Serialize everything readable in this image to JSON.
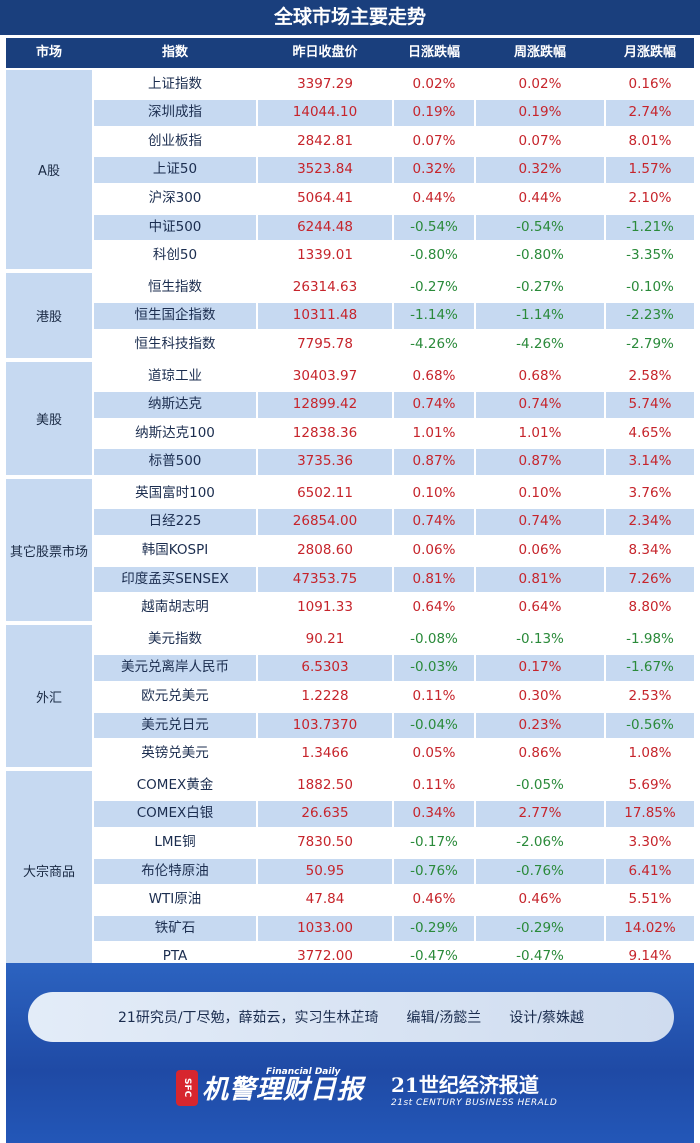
{
  "title": "全球市场主要走势",
  "headers": [
    "市场",
    "指数",
    "昨日收盘价",
    "日涨跌幅",
    "周涨跌幅",
    "月涨跌幅"
  ],
  "colors": {
    "header_bg": "#1a3f7d",
    "row_blue": "#c6d9f1",
    "row_white": "#ffffff",
    "up": "#c6242b",
    "down": "#2a8a3a"
  },
  "groups": [
    {
      "market": "A股",
      "rows": [
        {
          "name": "上证指数",
          "close": "3397.29",
          "day": "0.02%",
          "week": "0.02%",
          "month": "0.16%"
        },
        {
          "name": "深圳成指",
          "close": "14044.10",
          "day": "0.19%",
          "week": "0.19%",
          "month": "2.74%"
        },
        {
          "name": "创业板指",
          "close": "2842.81",
          "day": "0.07%",
          "week": "0.07%",
          "month": "8.01%"
        },
        {
          "name": "上证50",
          "close": "3523.84",
          "day": "0.32%",
          "week": "0.32%",
          "month": "1.57%"
        },
        {
          "name": "沪深300",
          "close": "5064.41",
          "day": "0.44%",
          "week": "0.44%",
          "month": "2.10%"
        },
        {
          "name": "中证500",
          "close": "6244.48",
          "day": "-0.54%",
          "week": "-0.54%",
          "month": "-1.21%"
        },
        {
          "name": "科创50",
          "close": "1339.01",
          "day": "-0.80%",
          "week": "-0.80%",
          "month": "-3.35%"
        }
      ]
    },
    {
      "market": "港股",
      "rows": [
        {
          "name": "恒生指数",
          "close": "26314.63",
          "day": "-0.27%",
          "week": "-0.27%",
          "month": "-0.10%"
        },
        {
          "name": "恒生国企指数",
          "close": "10311.48",
          "day": "-1.14%",
          "week": "-1.14%",
          "month": "-2.23%"
        },
        {
          "name": "恒生科技指数",
          "close": "7795.78",
          "day": "-4.26%",
          "week": "-4.26%",
          "month": "-2.79%"
        }
      ]
    },
    {
      "market": "美股",
      "rows": [
        {
          "name": "道琼工业",
          "close": "30403.97",
          "day": "0.68%",
          "week": "0.68%",
          "month": "2.58%"
        },
        {
          "name": "纳斯达克",
          "close": "12899.42",
          "day": "0.74%",
          "week": "0.74%",
          "month": "5.74%"
        },
        {
          "name": "纳斯达克100",
          "close": "12838.36",
          "day": "1.01%",
          "week": "1.01%",
          "month": "4.65%"
        },
        {
          "name": "标普500",
          "close": "3735.36",
          "day": "0.87%",
          "week": "0.87%",
          "month": "3.14%"
        }
      ]
    },
    {
      "market": "其它股票市场",
      "rows": [
        {
          "name": "英国富时100",
          "close": "6502.11",
          "day": "0.10%",
          "week": "0.10%",
          "month": "3.76%"
        },
        {
          "name": "日经225",
          "close": "26854.00",
          "day": "0.74%",
          "week": "0.74%",
          "month": "2.34%"
        },
        {
          "name": "韩国KOSPI",
          "close": "2808.60",
          "day": "0.06%",
          "week": "0.06%",
          "month": "8.34%"
        },
        {
          "name": "印度孟买SENSEX",
          "close": "47353.75",
          "day": "0.81%",
          "week": "0.81%",
          "month": "7.26%"
        },
        {
          "name": "越南胡志明",
          "close": "1091.33",
          "day": "0.64%",
          "week": "0.64%",
          "month": "8.80%"
        }
      ]
    },
    {
      "market": "外汇",
      "rows": [
        {
          "name": "美元指数",
          "close": "90.21",
          "day": "-0.08%",
          "week": "-0.13%",
          "month": "-1.98%"
        },
        {
          "name": "美元兑离岸人民币",
          "close": "6.5303",
          "day": "-0.03%",
          "week": "0.17%",
          "month": "-1.67%"
        },
        {
          "name": "欧元兑美元",
          "close": "1.2228",
          "day": "0.11%",
          "week": "0.30%",
          "month": "2.53%"
        },
        {
          "name": "美元兑日元",
          "close": "103.7370",
          "day": "-0.04%",
          "week": "0.23%",
          "month": "-0.56%"
        },
        {
          "name": "英镑兑美元",
          "close": "1.3466",
          "day": "0.05%",
          "week": "0.86%",
          "month": "1.08%"
        }
      ]
    },
    {
      "market": "大宗商品",
      "rows": [
        {
          "name": "COMEX黄金",
          "close": "1882.50",
          "day": "0.11%",
          "week": "-0.05%",
          "month": "5.69%"
        },
        {
          "name": "COMEX白银",
          "close": "26.635",
          "day": "0.34%",
          "week": "2.77%",
          "month": "17.85%"
        },
        {
          "name": "LME铜",
          "close": "7830.50",
          "day": "-0.17%",
          "week": "-2.06%",
          "month": "3.30%"
        },
        {
          "name": "布伦特原油",
          "close": "50.95",
          "day": "-0.76%",
          "week": "-0.76%",
          "month": "6.41%"
        },
        {
          "name": "WTI原油",
          "close": "47.84",
          "day": "0.46%",
          "week": "0.46%",
          "month": "5.51%"
        },
        {
          "name": "铁矿石",
          "close": "1033.00",
          "day": "-0.29%",
          "week": "-0.29%",
          "month": "14.02%"
        },
        {
          "name": "PTA",
          "close": "3772.00",
          "day": "-0.47%",
          "week": "-0.47%",
          "month": "9.14%"
        }
      ]
    }
  ],
  "footer": {
    "credits": [
      "21研究员/丁尽勉，薛茹云，实习生林芷琦",
      "编辑/汤懿兰",
      "设计/蔡姝越"
    ],
    "logo_left_badge": "SFC",
    "logo_left_cn": "机警理财日报",
    "logo_left_en": "Financial Daily",
    "logo_right_cn": "21世纪经济报道",
    "logo_right_en": "21st CENTURY BUSINESS HERALD"
  }
}
